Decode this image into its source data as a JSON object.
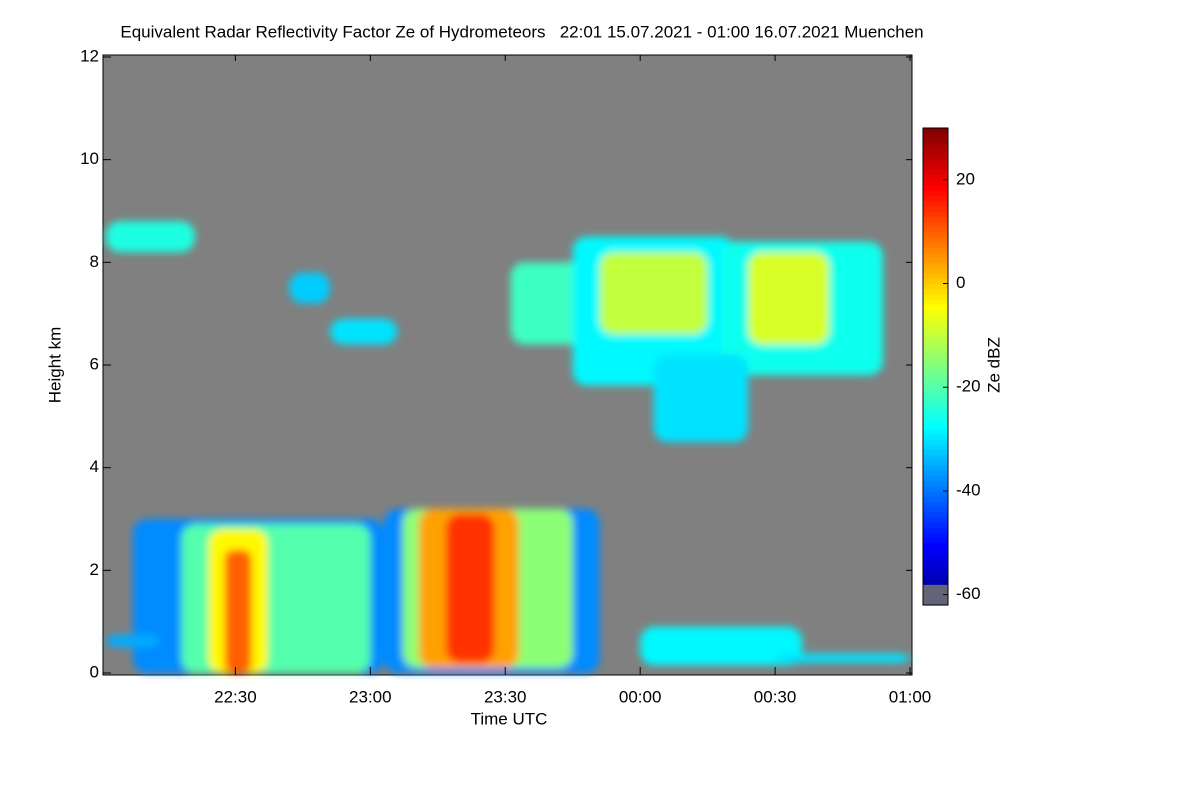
{
  "chart_data": {
    "type": "heatmap",
    "title": "Equivalent Radar Reflectivity Factor Ze of Hydrometeors   22:01 15.07.2021 - 01:00 16.07.2021 Muenchen",
    "xlabel": "Time UTC",
    "ylabel": "Height km",
    "colorbar_label": "Ze dBZ",
    "xlim": [
      22.0167,
      25.0
    ],
    "xticks": [
      {
        "value": 22.5,
        "label": "22:30"
      },
      {
        "value": 23.0,
        "label": "23:00"
      },
      {
        "value": 23.5,
        "label": "23:30"
      },
      {
        "value": 24.0,
        "label": "00:00"
      },
      {
        "value": 24.5,
        "label": "00:30"
      },
      {
        "value": 25.0,
        "label": "01:00"
      }
    ],
    "ylim": [
      0,
      12
    ],
    "yticks": [
      0,
      2,
      4,
      6,
      8,
      10,
      12
    ],
    "clim": [
      -62,
      30
    ],
    "cticks": [
      -60,
      -40,
      -20,
      0,
      20
    ],
    "background": "#808080",
    "echoes": [
      {
        "x": [
          22.02,
          22.35
        ],
        "y": [
          8.2,
          8.8
        ],
        "value": -25
      },
      {
        "x": [
          22.7,
          22.85
        ],
        "y": [
          7.2,
          7.8
        ],
        "value": -32
      },
      {
        "x": [
          22.85,
          23.1
        ],
        "y": [
          6.4,
          6.9
        ],
        "value": -30
      },
      {
        "x": [
          23.52,
          24.0
        ],
        "y": [
          6.4,
          8.0
        ],
        "value": -22
      },
      {
        "x": [
          23.75,
          24.35
        ],
        "y": [
          5.6,
          8.5
        ],
        "value": -28
      },
      {
        "x": [
          24.3,
          24.9
        ],
        "y": [
          5.8,
          8.4
        ],
        "value": -26
      },
      {
        "x": [
          24.05,
          24.4
        ],
        "y": [
          4.5,
          6.2
        ],
        "value": -30
      },
      {
        "x": [
          23.85,
          24.25
        ],
        "y": [
          6.6,
          8.2
        ],
        "value": -10
      },
      {
        "x": [
          24.4,
          24.7
        ],
        "y": [
          6.4,
          8.2
        ],
        "value": -8
      },
      {
        "x": [
          22.12,
          23.05
        ],
        "y": [
          0.0,
          3.0
        ],
        "value": -38
      },
      {
        "x": [
          22.3,
          23.0
        ],
        "y": [
          0.0,
          2.9
        ],
        "value": -20
      },
      {
        "x": [
          22.4,
          22.62
        ],
        "y": [
          0.0,
          2.8
        ],
        "value": -4
      },
      {
        "x": [
          22.46,
          22.56
        ],
        "y": [
          0.0,
          2.4
        ],
        "value": 10
      },
      {
        "x": [
          23.05,
          23.85
        ],
        "y": [
          0.0,
          3.2
        ],
        "value": -38
      },
      {
        "x": [
          23.12,
          23.75
        ],
        "y": [
          0.1,
          3.2
        ],
        "value": -15
      },
      {
        "x": [
          23.18,
          23.55
        ],
        "y": [
          0.1,
          3.2
        ],
        "value": 4
      },
      {
        "x": [
          23.28,
          23.46
        ],
        "y": [
          0.2,
          3.1
        ],
        "value": 14
      },
      {
        "x": [
          24.0,
          24.6
        ],
        "y": [
          0.15,
          0.9
        ],
        "value": -28
      },
      {
        "x": [
          24.5,
          25.0
        ],
        "y": [
          0.2,
          0.38
        ],
        "value": -30
      },
      {
        "x": [
          22.02,
          22.22
        ],
        "y": [
          0.5,
          0.75
        ],
        "value": -35
      }
    ]
  }
}
